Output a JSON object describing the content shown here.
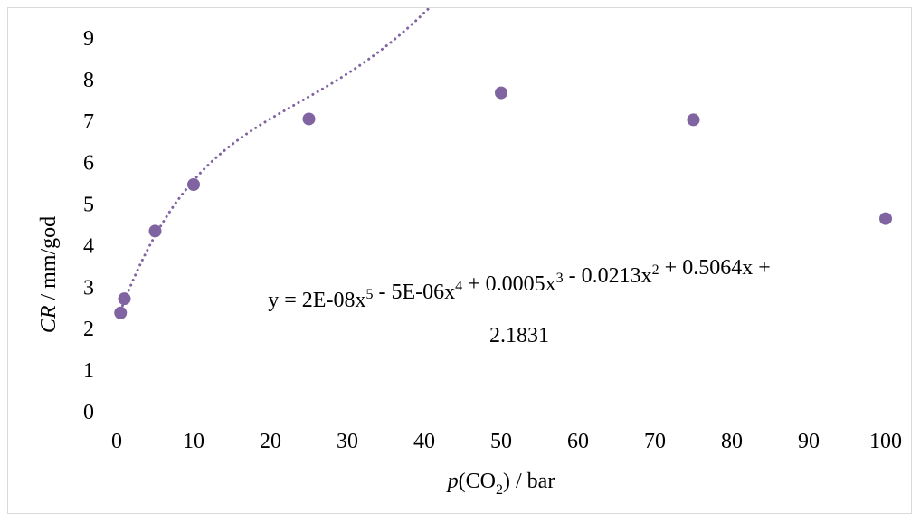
{
  "chart_data": {
    "type": "scatter",
    "title": "",
    "xlabel": {
      "italic": "p",
      "main": "(CO",
      "sub": "2",
      "tail": ") / bar"
    },
    "ylabel": {
      "italic": "CR",
      "main": " /  mm/god"
    },
    "xlim": [
      0,
      100
    ],
    "ylim": [
      0,
      9
    ],
    "xticks": [
      0,
      10,
      20,
      30,
      40,
      50,
      60,
      70,
      80,
      90,
      100
    ],
    "yticks": [
      0,
      1,
      2,
      3,
      4,
      5,
      6,
      7,
      8,
      9
    ],
    "grid": false,
    "legend": "none",
    "marker_color": "#8064a2",
    "series": [
      {
        "x": [
          0.5,
          1,
          5,
          10,
          25,
          50,
          75,
          100
        ],
        "y": [
          2.38,
          2.72,
          4.35,
          5.47,
          7.05,
          7.68,
          7.03,
          4.65
        ]
      }
    ],
    "trendline": {
      "type": "polynomial",
      "order": 5,
      "style": "dotted",
      "coefficients": [
        2e-08,
        -5e-06,
        0.0005,
        -0.0213,
        0.5064,
        2.1831
      ],
      "equation": {
        "parts": [
          {
            "t": "y = 2E-08x"
          },
          {
            "t": "5",
            "sup": true
          },
          {
            "t": " - 5E-06x"
          },
          {
            "t": "4",
            "sup": true
          },
          {
            "t": " + 0.0005x"
          },
          {
            "t": "3",
            "sup": true
          },
          {
            "t": " - 0.0213x"
          },
          {
            "t": "2",
            "sup": true
          },
          {
            "t": " + 0.5064x +"
          }
        ],
        "line2": "2.1831"
      }
    }
  }
}
